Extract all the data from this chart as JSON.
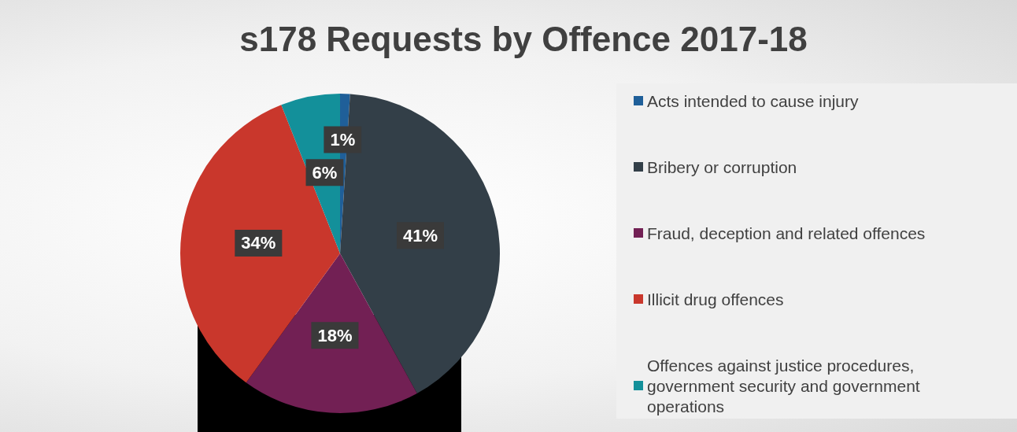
{
  "chart_data": {
    "type": "pie",
    "title": "s178 Requests by Offence 2017-18",
    "categories": [
      "Acts intended to cause injury",
      "Bribery or corruption",
      "Fraud, deception and related offences",
      "Illicit drug offences",
      "Offences against justice procedures, government security and government operations"
    ],
    "values": [
      1,
      41,
      18,
      34,
      6
    ],
    "colors": [
      "#1f5f99",
      "#333f48",
      "#722054",
      "#c9372c",
      "#13909a"
    ],
    "value_labels": [
      "1%",
      "41%",
      "18%",
      "34%",
      "6%"
    ],
    "legend": "right"
  }
}
